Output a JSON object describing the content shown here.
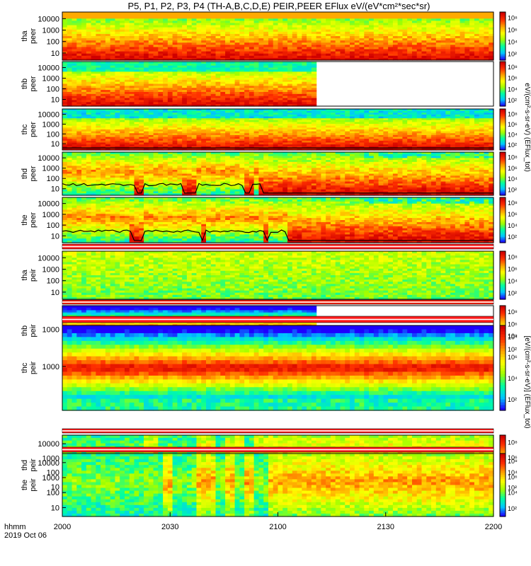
{
  "chart_data": {
    "type": "heatmap",
    "title": "P5, P1, P2, P3, P4 (TH-A,B,C,D,E) PEIR,PEER EFlux eV/(eV*cm²*sec*sr)",
    "x": {
      "ticks": [
        "2000",
        "2030",
        "2100",
        "2130",
        "2200"
      ],
      "range": [
        "2019-10-06 20:00",
        "2019-10-06 22:00"
      ],
      "label_line1": "hhmm",
      "label_line2": "2019 Oct 06"
    },
    "colorbar": {
      "ticks": [
        "10²",
        "10⁴",
        "10⁶",
        "10⁸"
      ],
      "range": [
        100,
        100000000
      ],
      "scale": "log",
      "palette": [
        "#1e00ff",
        "#00c8ff",
        "#00ffa0",
        "#a0ff00",
        "#ffff00",
        "#ffa000",
        "#ff3000",
        "#d00000"
      ],
      "label_peer": "eV/(cm²-s-sr-eV) (EFlux_tot)",
      "label_peir": "[eV/(cm²-s-sr-eV)] (EFlux_tot)"
    },
    "panels": [
      {
        "id": "tha_peer",
        "label1": "tha",
        "label2": "peer",
        "yticks": [
          "10",
          "100",
          "1000",
          "10000"
        ],
        "data_end_fraction": 1.0,
        "kind": "electron",
        "base_level": 0.62,
        "active_segments": [],
        "black_line": false
      },
      {
        "id": "thb_peer",
        "label1": "thb",
        "label2": "peer",
        "yticks": [
          "10",
          "100",
          "1000",
          "10000"
        ],
        "data_end_fraction": 0.585,
        "kind": "electron",
        "base_level": 0.55,
        "active_segments": [],
        "black_line": false
      },
      {
        "id": "thc_peer",
        "label1": "thc",
        "label2": "peer",
        "yticks": [
          "10",
          "100",
          "1000",
          "10000"
        ],
        "data_end_fraction": 1.0,
        "kind": "electron_hot",
        "base_level": 0.5,
        "active_segments": [],
        "black_line": true
      },
      {
        "id": "thd_peer",
        "label1": "thd",
        "label2": "peer",
        "yticks": [
          "10",
          "100",
          "1000",
          "10000"
        ],
        "data_end_fraction": 1.0,
        "kind": "electron_active",
        "base_level": 0.6,
        "active_segments": [
          [
            0.0,
            0.17
          ],
          [
            0.19,
            0.28
          ],
          [
            0.31,
            0.42
          ],
          [
            0.44,
            0.46
          ]
        ],
        "black_line": true
      },
      {
        "id": "the_peer",
        "label1": "the",
        "label2": "peer",
        "yticks": [
          "10",
          "100",
          "1000",
          "10000"
        ],
        "data_end_fraction": 1.0,
        "kind": "electron_active",
        "base_level": 0.6,
        "active_segments": [
          [
            0.0,
            0.16
          ],
          [
            0.19,
            0.32
          ],
          [
            0.33,
            0.47
          ],
          [
            0.48,
            0.52
          ]
        ],
        "black_line": true
      },
      {
        "id": "tha_peir",
        "label1": "tha",
        "label2": "peir",
        "yticks": [
          "10",
          "100",
          "1000",
          "10000"
        ],
        "data_end_fraction": 1.0,
        "kind": "ion_flat",
        "base_level": 0.3,
        "active_segments": [],
        "black_line": false
      },
      {
        "id": "thb_peir",
        "label1": "thb",
        "label2": "peir",
        "yticks": [
          "1000"
        ],
        "data_end_fraction": 0.585,
        "kind": "ion_band",
        "base_level": 0.5,
        "active_segments": [],
        "black_line": false
      },
      {
        "id": "thc_peir",
        "label1": "thc",
        "label2": "peir",
        "yticks": [
          "1000"
        ],
        "data_end_fraction": 1.0,
        "kind": "ion_band",
        "base_level": 0.5,
        "active_segments": [],
        "black_line": false
      },
      {
        "id": "thd_peir",
        "label1": "thd",
        "label2": "peir",
        "yticks": [
          "10",
          "100",
          "1000",
          "10000"
        ],
        "data_end_fraction": 1.0,
        "kind": "ion_active",
        "base_level": 0.5,
        "active_segments": [
          [
            0.19,
            0.22
          ],
          [
            0.31,
            0.36
          ],
          [
            0.38,
            0.42
          ],
          [
            0.44,
            1.0
          ]
        ],
        "black_line": false
      },
      {
        "id": "the_peir",
        "label1": "the",
        "label2": "peir",
        "yticks": [
          "10",
          "100",
          "1000",
          "10000"
        ],
        "data_end_fraction": 1.0,
        "kind": "ion_active",
        "base_level": 0.5,
        "active_segments": [
          [
            0.23,
            0.26
          ],
          [
            0.31,
            0.36
          ],
          [
            0.38,
            0.4
          ],
          [
            0.42,
            0.44
          ],
          [
            0.48,
            1.0
          ]
        ],
        "black_line": false
      }
    ]
  }
}
